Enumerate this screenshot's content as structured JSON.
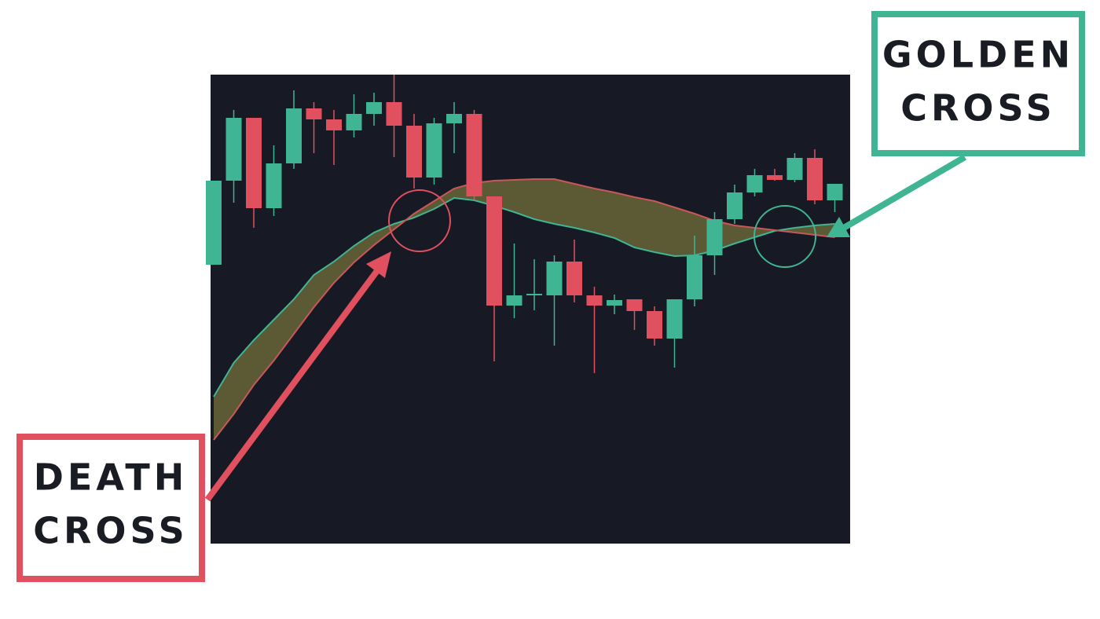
{
  "chart_data": {
    "type": "candlestick",
    "categories": [
      null,
      null,
      null,
      null,
      null,
      null,
      null,
      null,
      null,
      null,
      null,
      null,
      null,
      null,
      null,
      null,
      null,
      null,
      null,
      null,
      null,
      null,
      null,
      null,
      null,
      null,
      null,
      null,
      null,
      null,
      null,
      null
    ],
    "open": [
      355,
      462,
      542,
      427,
      484,
      554,
      540,
      526,
      547,
      562,
      532,
      466,
      535,
      547,
      442,
      303,
      316,
      316,
      359,
      316,
      303,
      311,
      296,
      261,
      311,
      367,
      413,
      447,
      469,
      463,
      491,
      437
    ],
    "high": [
      462,
      552,
      542,
      507,
      577,
      562,
      552,
      572,
      574,
      597,
      547,
      542,
      562,
      552,
      442,
      382,
      362,
      367,
      387,
      327,
      317,
      311,
      302,
      311,
      392,
      422,
      457,
      477,
      477,
      497,
      502,
      458
    ],
    "low": [
      355,
      434,
      402,
      417,
      477,
      497,
      482,
      517,
      532,
      492,
      452,
      457,
      497,
      437,
      232,
      287,
      297,
      252,
      307,
      217,
      292,
      272,
      252,
      224,
      302,
      342,
      407,
      442,
      462,
      460,
      432,
      422
    ],
    "close": [
      462,
      542,
      427,
      484,
      554,
      540,
      526,
      547,
      562,
      532,
      466,
      535,
      547,
      442,
      303,
      316,
      318,
      359,
      316,
      303,
      310,
      296,
      261,
      311,
      367,
      413,
      447,
      469,
      463,
      491,
      437,
      458
    ],
    "up_color": "#3fb594",
    "down_color": "#e0505e",
    "moving_averages": [
      {
        "color": "#3fb594",
        "values": [
          187,
          230,
          259,
          285,
          311,
          342,
          359,
          379,
          396,
          407,
          415,
          426,
          440,
          437,
          430,
          422,
          413,
          407,
          402,
          396,
          389,
          377,
          371,
          366,
          367,
          373,
          382,
          390,
          398,
          402,
          405,
          407
        ]
      },
      {
        "color": "#c9575a",
        "values": [
          132,
          165,
          202,
          233,
          267,
          301,
          332,
          358,
          380,
          400,
          420,
          436,
          452,
          459,
          462,
          463,
          464,
          464,
          458,
          452,
          447,
          441,
          436,
          428,
          420,
          411,
          405,
          402,
          399,
          396,
          393,
          390
        ]
      }
    ],
    "ylim": [
      0,
      597
    ],
    "annotations": [
      {
        "lines": [
          "GOLDEN",
          "CROSS"
        ],
        "color": "#3fb594"
      },
      {
        "lines": [
          "DEATH",
          "CROSS"
        ],
        "color": "#e0505e"
      }
    ]
  }
}
